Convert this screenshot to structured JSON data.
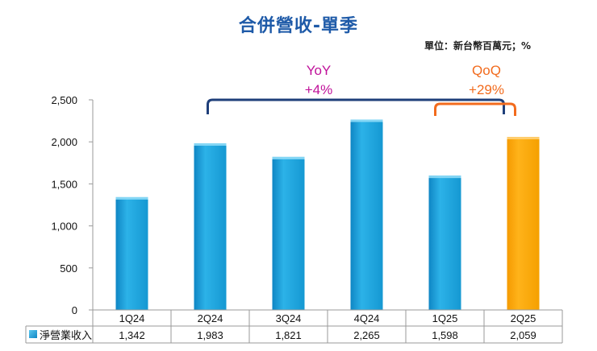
{
  "title": "合併營收-單季",
  "unit": "單位：新台幣百萬元；%",
  "colors": {
    "bar": "#1aa3dc",
    "highlight": "#ffa500",
    "title": "#1e5aa8",
    "yoy_label": "#c0129a",
    "qoq_label": "#f26b1d",
    "yoy_bracket": "#1f3f7a",
    "qoq_bracket": "#f26b1d"
  },
  "chart_data": {
    "type": "bar",
    "categories": [
      "1Q24",
      "2Q24",
      "3Q24",
      "4Q24",
      "1Q25",
      "2Q25"
    ],
    "series": [
      {
        "name": "淨營業收入",
        "values": [
          1342,
          1983,
          1821,
          2265,
          1598,
          2059
        ]
      }
    ],
    "value_labels": [
      "1,342",
      "1,983",
      "1,821",
      "2,265",
      "1,598",
      "2,059"
    ],
    "highlight_index": 5,
    "yticks": [
      0,
      500,
      1000,
      1500,
      2000,
      2500
    ],
    "ytick_labels": [
      "0",
      "500",
      "1,000",
      "1,500",
      "2,000",
      "2,500"
    ],
    "ylim": [
      0,
      2500
    ],
    "grid": false,
    "legend": "data-table-row",
    "annotations": [
      {
        "name": "YoY",
        "label": "YoY",
        "value": "+4%",
        "from": "2Q24",
        "to": "2Q25"
      },
      {
        "name": "QoQ",
        "label": "QoQ",
        "value": "+29%",
        "from": "1Q25",
        "to": "2Q25"
      }
    ]
  }
}
